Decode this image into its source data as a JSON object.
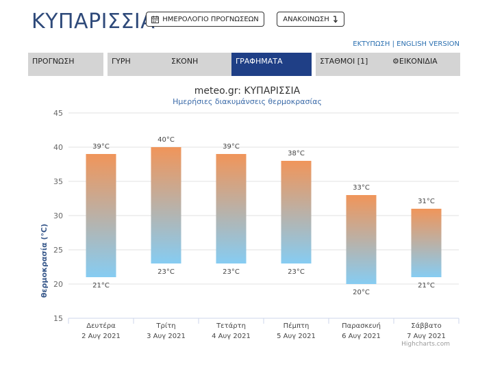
{
  "header": {
    "city": "ΚΥΠΑΡΙΣΣΙΑ",
    "calendar_button": "ΗΜΕΡΟΛΟΓΙΟ ΠΡΟΓΝΩΣΕΩΝ",
    "announcement_button": "ΑΝΑΚΟΙΝΩΣΗ",
    "print_link": "ΕΚΤΥΠΩΣΗ",
    "separator": " | ",
    "english_link": "ENGLISH VERSION"
  },
  "tabs": [
    {
      "label": "ΠΡΟΓΝΩΣΗ",
      "active": false
    },
    {
      "label": "ΓΥΡΗ",
      "active": false
    },
    {
      "label": "ΣΚΟΝΗ",
      "active": false
    },
    {
      "label": "ΓΡΑΦΗΜΑΤΑ",
      "active": true
    },
    {
      "label": "ΣΤΑΘΜΟΙ [1]",
      "active": false
    },
    {
      "label": "ΕΙΚΟΝΙΔΙΑ",
      "active": false
    }
  ],
  "colors": {
    "bar_top": "#f0955a",
    "bar_bottom": "#86ccf2",
    "active_tab": "#1f3f86",
    "city_title": "#2f4a7a",
    "link": "#2a6fb0"
  },
  "chart_data": {
    "type": "bar",
    "subtype": "columnrange",
    "title": "meteo.gr: ΚΥΠΑΡΙΣΣΙΑ",
    "subtitle": "Ημερήσιες διακυμάνσεις θερμοκρασίας",
    "ylabel": "θερμοκρασία (°C)",
    "ylim": [
      15,
      45
    ],
    "yticks": [
      15,
      20,
      25,
      30,
      35,
      40,
      45
    ],
    "grid": true,
    "categories": [
      [
        "Δευτέρα",
        "2 Αυγ 2021"
      ],
      [
        "Τρίτη",
        "3 Αυγ 2021"
      ],
      [
        "Τετάρτη",
        "4 Αυγ 2021"
      ],
      [
        "Πέμπτη",
        "5 Αυγ 2021"
      ],
      [
        "Παρασκευή",
        "6 Αυγ 2021"
      ],
      [
        "Σάββατο",
        "7 Αυγ 2021"
      ]
    ],
    "low": [
      21,
      23,
      23,
      23,
      20,
      21
    ],
    "high": [
      39,
      40,
      39,
      38,
      33,
      31
    ],
    "unit": "°C",
    "credits": "Highcharts.com"
  }
}
